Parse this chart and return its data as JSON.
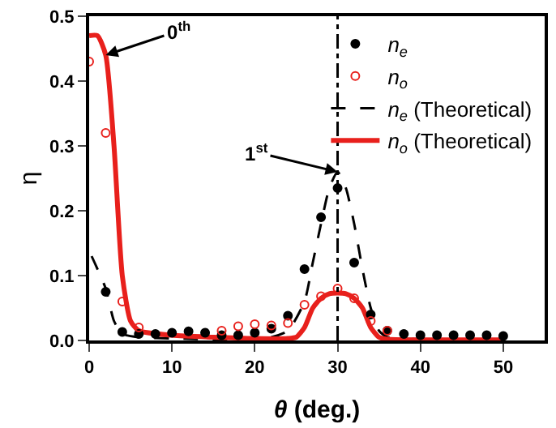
{
  "chart_data": {
    "type": "scatter",
    "xlabel": "θ (deg.)",
    "ylabel": "η",
    "xlim": [
      0,
      55
    ],
    "xticks": [
      0,
      10,
      20,
      30,
      40,
      50
    ],
    "ylim": [
      0,
      0.5
    ],
    "yticks": [
      {
        "value": 0,
        "label": "0.0"
      },
      0.1,
      0.2,
      0.3,
      0.4,
      0.5
    ],
    "legend": "top right",
    "series": [
      {
        "name": "n$_{e}$",
        "marker": "circle",
        "color": "#000000",
        "x": [
          2,
          4,
          6,
          8,
          10,
          12,
          14,
          16,
          18,
          20,
          22,
          24,
          26,
          28,
          30,
          32,
          34,
          36,
          38,
          40,
          42,
          44,
          46,
          48,
          50
        ],
        "values": [
          0.075,
          0.013,
          0.01,
          0.01,
          0.012,
          0.014,
          0.012,
          0.008,
          0.008,
          0.012,
          0.018,
          0.038,
          0.11,
          0.19,
          0.235,
          0.12,
          0.04,
          0.015,
          0.01,
          0.008,
          0.008,
          0.008,
          0.008,
          0.008,
          0.007
        ]
      },
      {
        "name": "n$_{o}$",
        "marker": "circle-open",
        "color": "#e8201c",
        "x": [
          0,
          2,
          4,
          6,
          16,
          18,
          20,
          22,
          24,
          26,
          28,
          30,
          32,
          34,
          36
        ],
        "values": [
          0.43,
          0.32,
          0.06,
          0.02,
          0.015,
          0.022,
          0.025,
          0.023,
          0.027,
          0.055,
          0.068,
          0.08,
          0.065,
          0.03,
          0.015
        ]
      },
      {
        "name": "n$_{e}$ (Theoretical)",
        "type": "line",
        "line_style": "dashed",
        "color": "#000000",
        "x": [
          0.3,
          2,
          3,
          4,
          6,
          10,
          20,
          22,
          24,
          26,
          27,
          28,
          29,
          30,
          31,
          32,
          33,
          34,
          35,
          36,
          40,
          50
        ],
        "values": [
          0.13,
          0.08,
          0.03,
          0.01,
          0.005,
          0.003,
          0.002,
          0.005,
          0.015,
          0.06,
          0.12,
          0.18,
          0.235,
          0.26,
          0.235,
          0.18,
          0.11,
          0.05,
          0.015,
          0.005,
          0.002,
          0.002
        ]
      },
      {
        "name": "n$_{o}$ (Theoretical)",
        "type": "line",
        "line_style": "solid",
        "color": "#e8201c",
        "x": [
          0,
          1,
          2,
          3,
          4,
          5,
          6,
          10,
          20,
          24,
          25,
          26,
          27,
          28,
          29,
          30,
          31,
          32,
          33,
          34,
          35,
          36,
          40,
          50
        ],
        "values": [
          0.47,
          0.47,
          0.44,
          0.3,
          0.1,
          0.03,
          0.015,
          0.008,
          0.003,
          0.003,
          0.005,
          0.02,
          0.05,
          0.065,
          0.072,
          0.073,
          0.072,
          0.065,
          0.05,
          0.02,
          0.005,
          0.002,
          0.001,
          0.001
        ]
      }
    ],
    "ref_lines": [
      {
        "axis": "x",
        "value": 30,
        "color": "#000000",
        "line_style": "dashdot"
      }
    ],
    "annotations": [
      {
        "text": "0$^{th}$",
        "x": 2,
        "y": 0.44
      },
      {
        "text": "1$^{st}$",
        "x": 30,
        "y": 0.26
      }
    ]
  }
}
